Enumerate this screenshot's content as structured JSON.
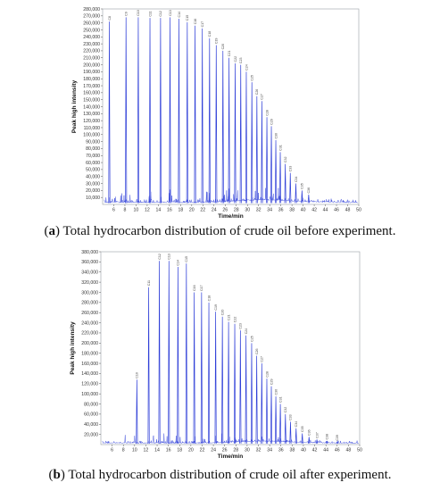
{
  "colors": {
    "trace": "#2f3fd8",
    "axis": "#555555",
    "frame": "#9aa0a6"
  },
  "captions": [
    {
      "letter": "a",
      "text": ") Total hydrocarbon distribution of crude oil before experiment."
    },
    {
      "letter": "b",
      "text": ") Total hydrocarbon distribution of crude oil after experiment."
    }
  ],
  "chart_data": [
    {
      "type": "line",
      "title": "",
      "xlabel": "Time/min",
      "ylabel": "Peak high intensity",
      "xlim": [
        4,
        50
      ],
      "ylim": [
        0,
        280000
      ],
      "x_ticks": [
        6,
        8,
        10,
        12,
        14,
        16,
        18,
        20,
        22,
        24,
        26,
        28,
        30,
        32,
        34,
        36,
        38,
        40,
        42,
        44,
        46,
        48,
        50
      ],
      "y_ticks": [
        10000,
        20000,
        30000,
        40000,
        50000,
        60000,
        70000,
        80000,
        90000,
        100000,
        110000,
        120000,
        130000,
        140000,
        150000,
        160000,
        170000,
        180000,
        190000,
        200000,
        210000,
        220000,
        230000,
        240000,
        250000,
        260000,
        270000,
        280000
      ],
      "y_tick_labels": [
        "10,000",
        "20,000",
        "30,000",
        "40,000",
        "50,000",
        "60,000",
        "70,000",
        "80,000",
        "90,000",
        "100,000",
        "110,000",
        "120,000",
        "130,000",
        "140,000",
        "150,000",
        "160,000",
        "170,000",
        "180,000",
        "190,000",
        "200,000",
        "210,000",
        "220,000",
        "230,000",
        "240,000",
        "250,000",
        "260,000",
        "270,000",
        "280,000"
      ],
      "peaks": [
        {
          "x": 5.2,
          "y": 262000,
          "label": "C8"
        },
        {
          "x": 8.2,
          "y": 268000,
          "label": "C9"
        },
        {
          "x": 10.4,
          "y": 268000,
          "label": "C10"
        },
        {
          "x": 12.5,
          "y": 267000,
          "label": "C11"
        },
        {
          "x": 14.4,
          "y": 267000,
          "label": "C12"
        },
        {
          "x": 16.1,
          "y": 268000,
          "label": "C13"
        },
        {
          "x": 17.7,
          "y": 266000,
          "label": "C14"
        },
        {
          "x": 19.2,
          "y": 261000,
          "label": "C15"
        },
        {
          "x": 20.6,
          "y": 256000,
          "label": "C16"
        },
        {
          "x": 21.9,
          "y": 252000,
          "label": "C17"
        },
        {
          "x": 23.2,
          "y": 238000,
          "label": "C18"
        },
        {
          "x": 24.4,
          "y": 228000,
          "label": "C19"
        },
        {
          "x": 25.6,
          "y": 220000,
          "label": "C20"
        },
        {
          "x": 26.7,
          "y": 210000,
          "label": "C21"
        },
        {
          "x": 27.8,
          "y": 202000,
          "label": "C22"
        },
        {
          "x": 28.8,
          "y": 200000,
          "label": "C23"
        },
        {
          "x": 29.8,
          "y": 190000,
          "label": "C24"
        },
        {
          "x": 30.8,
          "y": 175000,
          "label": "C25"
        },
        {
          "x": 31.7,
          "y": 155000,
          "label": "C26"
        },
        {
          "x": 32.6,
          "y": 148000,
          "label": "C27"
        },
        {
          "x": 33.5,
          "y": 125000,
          "label": "C28"
        },
        {
          "x": 34.3,
          "y": 112000,
          "label": "C29"
        },
        {
          "x": 35.1,
          "y": 92000,
          "label": "C30"
        },
        {
          "x": 35.9,
          "y": 75000,
          "label": "C31"
        },
        {
          "x": 36.8,
          "y": 58000,
          "label": "C32"
        },
        {
          "x": 37.7,
          "y": 45000,
          "label": "C33"
        },
        {
          "x": 38.7,
          "y": 30000,
          "label": "C34"
        },
        {
          "x": 39.8,
          "y": 20000,
          "label": "C35"
        },
        {
          "x": 41.0,
          "y": 14000,
          "label": "C36"
        }
      ]
    },
    {
      "type": "line",
      "title": "",
      "xlabel": "Time/min",
      "ylabel": "Peak high intensity",
      "xlim": [
        4,
        50
      ],
      "ylim": [
        0,
        380000
      ],
      "x_ticks": [
        6,
        8,
        10,
        12,
        14,
        16,
        18,
        20,
        22,
        24,
        26,
        28,
        30,
        32,
        34,
        36,
        38,
        40,
        42,
        44,
        46,
        48,
        50
      ],
      "y_ticks": [
        20000,
        40000,
        60000,
        80000,
        100000,
        120000,
        140000,
        160000,
        180000,
        200000,
        220000,
        240000,
        260000,
        280000,
        300000,
        320000,
        340000,
        360000,
        380000
      ],
      "y_tick_labels": [
        "20,000",
        "40,000",
        "60,000",
        "80,000",
        "100,000",
        "120,000",
        "140,000",
        "160,000",
        "180,000",
        "200,000",
        "220,000",
        "240,000",
        "260,000",
        "280,000",
        "300,000",
        "320,000",
        "340,000",
        "360,000",
        "380,000"
      ],
      "peaks": [
        {
          "x": 10.4,
          "y": 128000,
          "label": "C10"
        },
        {
          "x": 12.5,
          "y": 310000,
          "label": "C11"
        },
        {
          "x": 14.4,
          "y": 362000,
          "label": "C12"
        },
        {
          "x": 16.1,
          "y": 362000,
          "label": "C13"
        },
        {
          "x": 17.7,
          "y": 350000,
          "label": "C14"
        },
        {
          "x": 19.2,
          "y": 357000,
          "label": "C15"
        },
        {
          "x": 20.6,
          "y": 300000,
          "label": "C16"
        },
        {
          "x": 21.9,
          "y": 300000,
          "label": "C17"
        },
        {
          "x": 23.2,
          "y": 280000,
          "label": "C18"
        },
        {
          "x": 24.4,
          "y": 262000,
          "label": "C19"
        },
        {
          "x": 25.6,
          "y": 252000,
          "label": "C20"
        },
        {
          "x": 26.7,
          "y": 242000,
          "label": "C21"
        },
        {
          "x": 27.8,
          "y": 238000,
          "label": "C22"
        },
        {
          "x": 28.8,
          "y": 225000,
          "label": "C23"
        },
        {
          "x": 29.8,
          "y": 215000,
          "label": "C24"
        },
        {
          "x": 30.8,
          "y": 200000,
          "label": "C25"
        },
        {
          "x": 31.7,
          "y": 175000,
          "label": "C26"
        },
        {
          "x": 32.6,
          "y": 160000,
          "label": "C27"
        },
        {
          "x": 33.5,
          "y": 130000,
          "label": "C28"
        },
        {
          "x": 34.3,
          "y": 115000,
          "label": "C29"
        },
        {
          "x": 35.1,
          "y": 95000,
          "label": "C30"
        },
        {
          "x": 35.9,
          "y": 80000,
          "label": "C31"
        },
        {
          "x": 36.8,
          "y": 60000,
          "label": "C32"
        },
        {
          "x": 37.7,
          "y": 45000,
          "label": "C33"
        },
        {
          "x": 38.7,
          "y": 32000,
          "label": "C34"
        },
        {
          "x": 39.8,
          "y": 22000,
          "label": "C35"
        },
        {
          "x": 41.0,
          "y": 15000,
          "label": "C36"
        },
        {
          "x": 42.4,
          "y": 10000,
          "label": "C37"
        },
        {
          "x": 44.2,
          "y": 7000,
          "label": "C38"
        },
        {
          "x": 46.0,
          "y": 5000,
          "label": "C39"
        }
      ]
    }
  ]
}
